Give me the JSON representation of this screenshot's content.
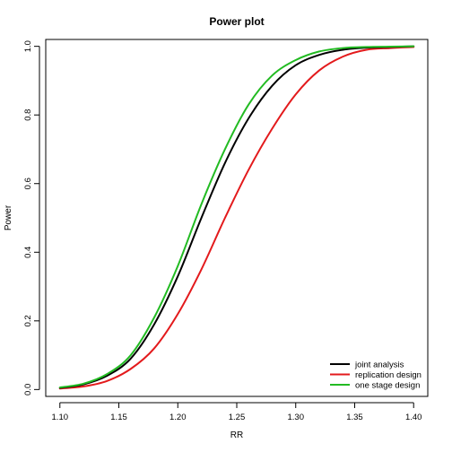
{
  "chart_data": {
    "type": "line",
    "title": "Power plot",
    "xlabel": "RR",
    "ylabel": "Power",
    "xlim": [
      1.088,
      1.412
    ],
    "ylim": [
      -0.02,
      1.02
    ],
    "x_ticks": [
      1.1,
      1.15,
      1.2,
      1.25,
      1.3,
      1.35,
      1.4
    ],
    "x_tick_labels": [
      "1.10",
      "1.15",
      "1.20",
      "1.25",
      "1.30",
      "1.35",
      "1.40"
    ],
    "y_ticks": [
      0.0,
      0.2,
      0.4,
      0.6,
      0.8,
      1.0
    ],
    "y_tick_labels": [
      "0.0",
      "0.2",
      "0.4",
      "0.6",
      "0.8",
      "1.0"
    ],
    "grid": false,
    "legend_position": "bottom-right",
    "x": [
      1.1,
      1.12,
      1.14,
      1.16,
      1.18,
      1.2,
      1.22,
      1.24,
      1.26,
      1.28,
      1.3,
      1.32,
      1.34,
      1.36,
      1.38,
      1.4
    ],
    "series": [
      {
        "name": "joint analysis",
        "color": "#000000",
        "values": [
          0.005,
          0.015,
          0.04,
          0.09,
          0.19,
          0.33,
          0.5,
          0.66,
          0.79,
          0.885,
          0.945,
          0.975,
          0.99,
          0.996,
          0.998,
          1.0
        ]
      },
      {
        "name": "replication design",
        "color": "#e31a1c",
        "values": [
          0.003,
          0.009,
          0.025,
          0.06,
          0.12,
          0.22,
          0.35,
          0.5,
          0.64,
          0.76,
          0.86,
          0.93,
          0.97,
          0.99,
          0.995,
          0.998
        ]
      },
      {
        "name": "one stage design",
        "color": "#22bb22",
        "values": [
          0.006,
          0.017,
          0.045,
          0.1,
          0.21,
          0.36,
          0.54,
          0.7,
          0.83,
          0.915,
          0.96,
          0.985,
          0.995,
          0.998,
          0.999,
          1.0
        ]
      }
    ]
  }
}
